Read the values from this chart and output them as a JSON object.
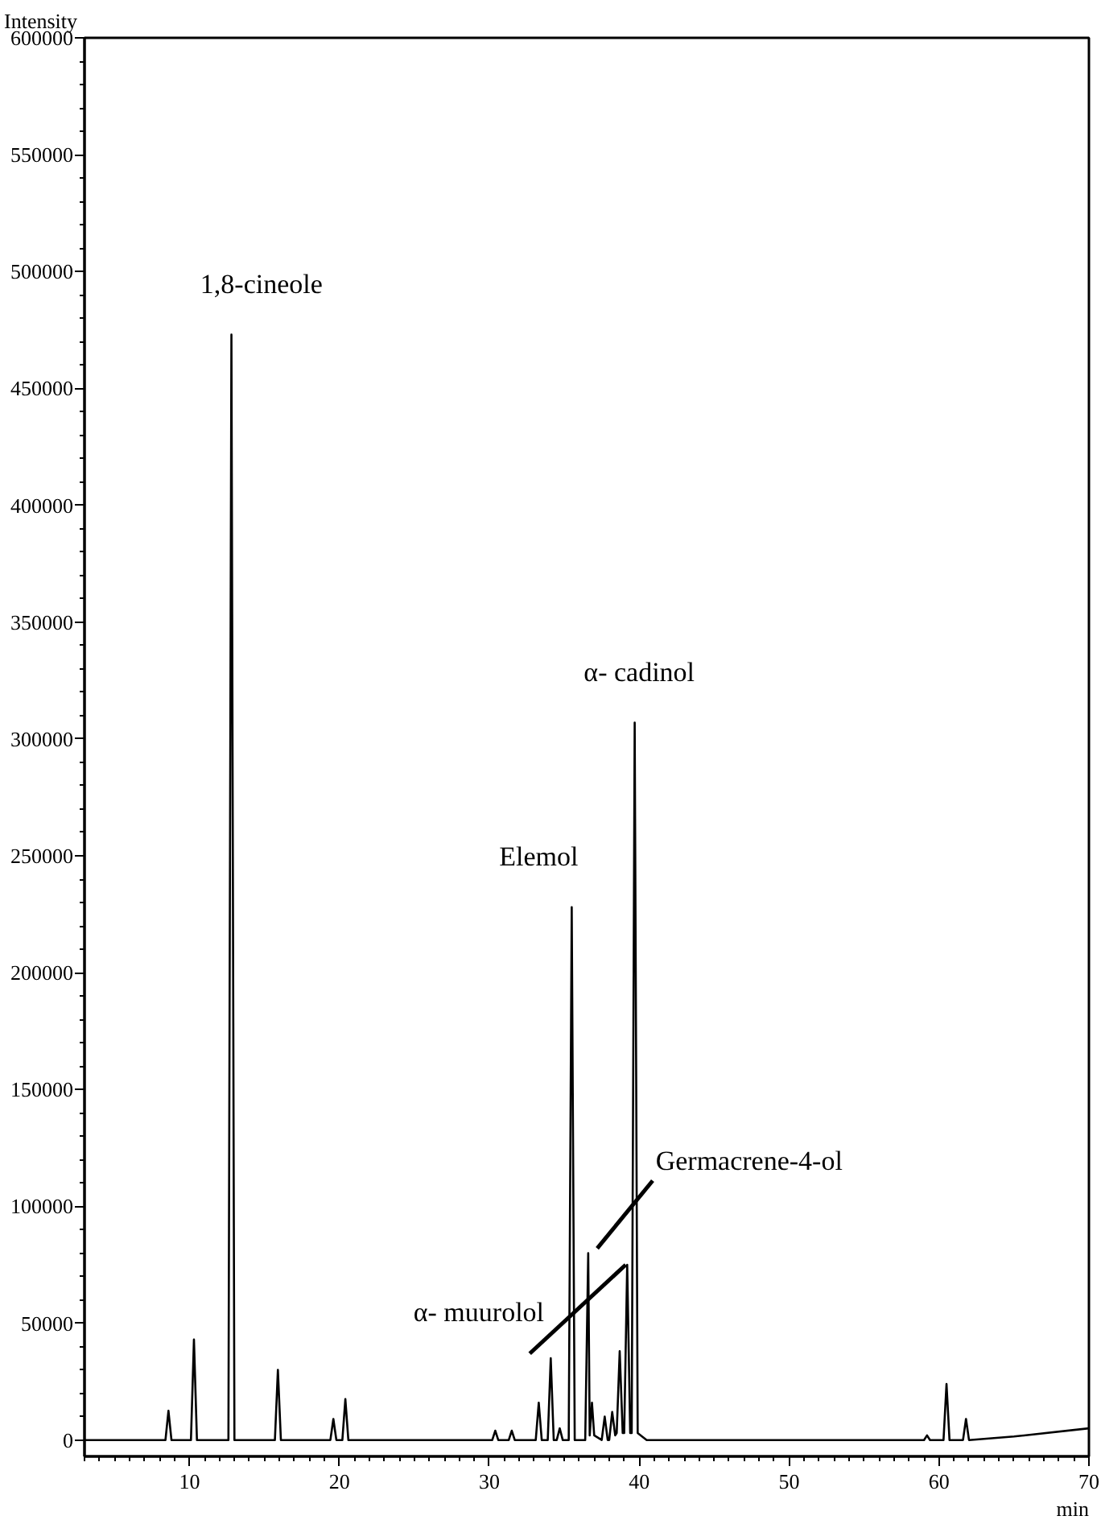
{
  "chart_data": {
    "type": "line",
    "xlabel": "min",
    "ylabel": "Intensity",
    "xlim": [
      3,
      70
    ],
    "ylim": [
      -7000,
      600000
    ],
    "xticks": [
      10,
      20,
      30,
      40,
      50,
      60,
      70
    ],
    "yticks": [
      0,
      50000,
      100000,
      150000,
      200000,
      250000,
      300000,
      350000,
      400000,
      450000,
      500000,
      550000,
      600000
    ],
    "grid": false,
    "marker": "none",
    "line_style": "solid",
    "series": [
      {
        "color": "#000000",
        "x": [
          3,
          8.4,
          8.6,
          8.8,
          10.1,
          10.3,
          10.5,
          12.6,
          12.8,
          13.0,
          15.7,
          15.9,
          16.1,
          19.4,
          19.6,
          19.8,
          20.2,
          20.4,
          20.6,
          30.2,
          30.4,
          30.6,
          31.3,
          31.5,
          31.7,
          33.1,
          33.3,
          33.5,
          33.9,
          34.1,
          34.3,
          34.5,
          34.7,
          34.9,
          35.3,
          35.5,
          35.7,
          36.4,
          36.6,
          36.7,
          36.85,
          37.0,
          37.5,
          37.7,
          37.9,
          38.0,
          38.2,
          38.4,
          38.5,
          38.7,
          38.9,
          39.0,
          39.2,
          39.4,
          39.5,
          39.7,
          39.9,
          40.5,
          59.0,
          59.2,
          59.4,
          60.3,
          60.5,
          60.7,
          61.6,
          61.8,
          62.0,
          65,
          70
        ],
        "values": [
          0,
          0,
          12500,
          0,
          0,
          43000,
          0,
          0,
          473000,
          0,
          0,
          30000,
          0,
          0,
          9000,
          0,
          0,
          17500,
          0,
          0,
          4000,
          0,
          0,
          4000,
          0,
          0,
          16000,
          0,
          0,
          35000,
          0,
          0,
          5000,
          0,
          0,
          228000,
          0,
          0,
          80000,
          2000,
          16000,
          2000,
          0,
          10000,
          0,
          0,
          12000,
          2000,
          3000,
          38000,
          3000,
          3000,
          75000,
          3000,
          3000,
          307000,
          3000,
          0,
          0,
          2000,
          0,
          0,
          24000,
          0,
          0,
          9000,
          0,
          1500,
          5000
        ]
      }
    ],
    "annotations": [
      {
        "text": "1,8-cineole",
        "x": 12.8,
        "y": 473000
      },
      {
        "text": "Elemol",
        "x": 35.5,
        "y": 228000
      },
      {
        "text": "α- cadinol",
        "x": 39.7,
        "y": 307000
      },
      {
        "text": "Germacrene-4-ol",
        "x": 36.6,
        "y": 80000
      },
      {
        "text": "α- muurolol",
        "x": 39.2,
        "y": 75000
      }
    ]
  }
}
